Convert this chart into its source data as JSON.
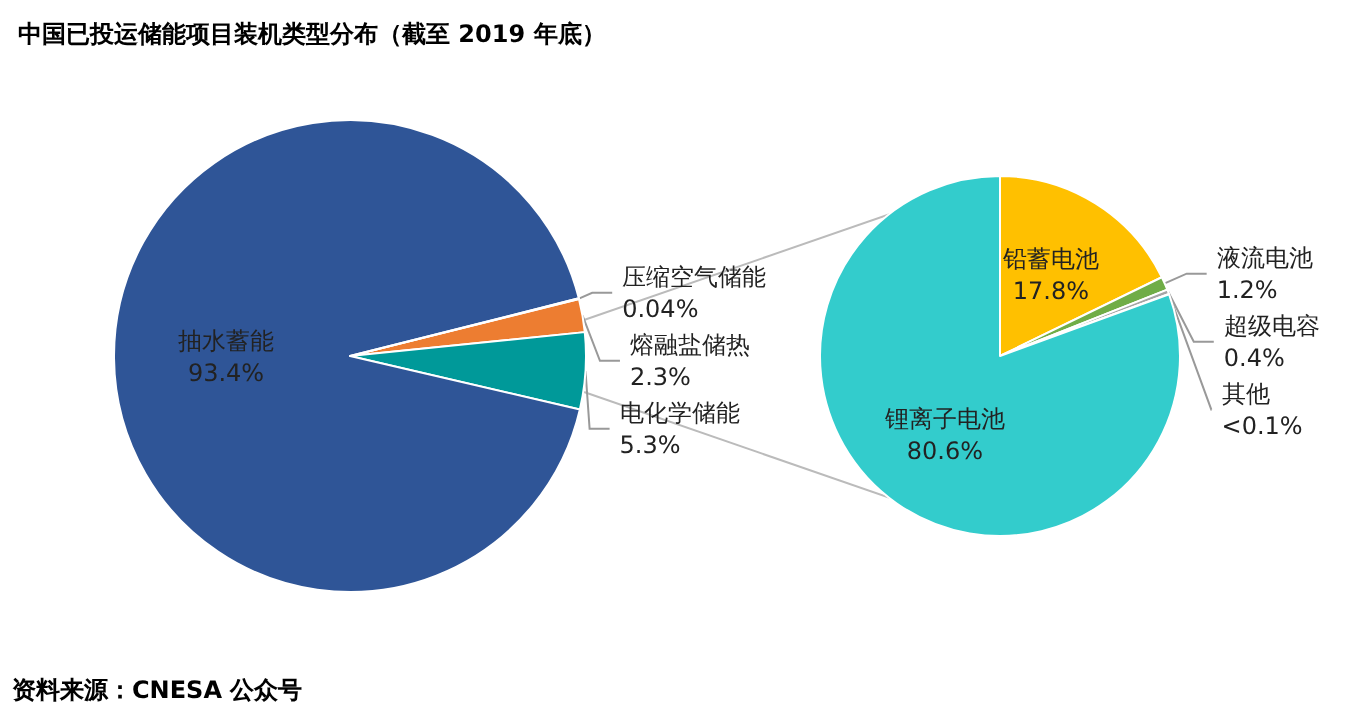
{
  "chart_data": [
    {
      "type": "pie",
      "title": "中国已投运储能项目装机类型分布（截至 2019 年底）",
      "categories": [
        "熔融盐储热",
        "电化学储能",
        "抽水蓄能",
        "压缩空气储能"
      ],
      "values": [
        2.3,
        5.3,
        93.4,
        0.04
      ],
      "colors": [
        "#ed7d31",
        "#009999",
        "#2f5597",
        "#a5a5a5"
      ],
      "value_labels": [
        "2.3%",
        "5.3%",
        "93.4%",
        "0.04%"
      ],
      "annotations": [
        "资料来源：CNESA 公众号"
      ]
    },
    {
      "type": "pie",
      "categories": [
        "铅蓄电池",
        "液流电池",
        "超级电容",
        "其他",
        "锂离子电池"
      ],
      "values": [
        17.8,
        1.2,
        0.4,
        0.05,
        80.6
      ],
      "colors": [
        "#ffc000",
        "#70ad47",
        "#a5a5a5",
        "#5b9bd5",
        "#33cccc"
      ],
      "value_labels": [
        "17.8%",
        "1.2%",
        "0.4%",
        "<0.1%",
        "80.6%"
      ]
    }
  ]
}
